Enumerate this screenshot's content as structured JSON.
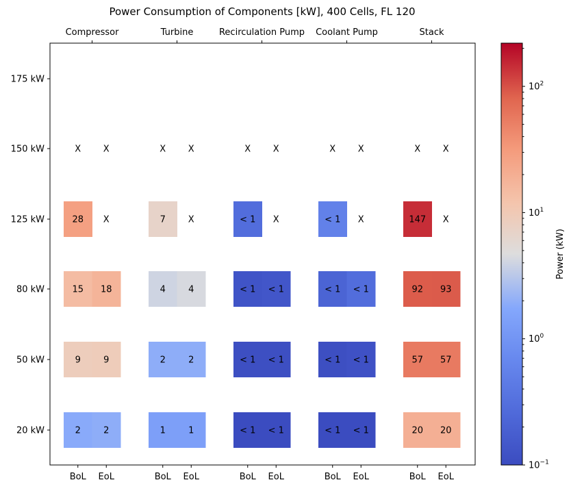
{
  "chart_data": {
    "type": "heatmap",
    "title": "Power Consumption of Components [kW], 400 Cells, FL 120",
    "components": [
      "Compressor",
      "Turbine",
      "Recirculation Pump",
      "Coolant Pump",
      "Stack"
    ],
    "conditions": [
      "BoL",
      "EoL"
    ],
    "rows": [
      "175 kW",
      "150 kW",
      "125 kW",
      "80 kW",
      "50 kW",
      "20 kW"
    ],
    "colorbar": {
      "label": "Power (kW)",
      "scale": "log",
      "min": 0.1,
      "max": 220,
      "colormap": "coolwarm",
      "ticks": [
        {
          "value": 0.1,
          "base": "10",
          "exp": "−1"
        },
        {
          "value": 1,
          "base": "10",
          "exp": "0"
        },
        {
          "value": 10,
          "base": "10",
          "exp": "1"
        },
        {
          "value": 100,
          "base": "10",
          "exp": "2"
        }
      ]
    },
    "cells": [
      {
        "row": "150 kW",
        "component": "Compressor",
        "condition": "BoL",
        "value": null,
        "label": "X"
      },
      {
        "row": "150 kW",
        "component": "Compressor",
        "condition": "EoL",
        "value": null,
        "label": "X"
      },
      {
        "row": "150 kW",
        "component": "Turbine",
        "condition": "BoL",
        "value": null,
        "label": "X"
      },
      {
        "row": "150 kW",
        "component": "Turbine",
        "condition": "EoL",
        "value": null,
        "label": "X"
      },
      {
        "row": "150 kW",
        "component": "Recirculation Pump",
        "condition": "BoL",
        "value": null,
        "label": "X"
      },
      {
        "row": "150 kW",
        "component": "Recirculation Pump",
        "condition": "EoL",
        "value": null,
        "label": "X"
      },
      {
        "row": "150 kW",
        "component": "Coolant Pump",
        "condition": "BoL",
        "value": null,
        "label": "X"
      },
      {
        "row": "150 kW",
        "component": "Coolant Pump",
        "condition": "EoL",
        "value": null,
        "label": "X"
      },
      {
        "row": "150 kW",
        "component": "Stack",
        "condition": "BoL",
        "value": null,
        "label": "X"
      },
      {
        "row": "150 kW",
        "component": "Stack",
        "condition": "EoL",
        "value": null,
        "label": "X"
      },
      {
        "row": "125 kW",
        "component": "Compressor",
        "condition": "BoL",
        "value": 28,
        "label": "28"
      },
      {
        "row": "125 kW",
        "component": "Compressor",
        "condition": "EoL",
        "value": null,
        "label": "X"
      },
      {
        "row": "125 kW",
        "component": "Turbine",
        "condition": "BoL",
        "value": 7,
        "label": "7"
      },
      {
        "row": "125 kW",
        "component": "Turbine",
        "condition": "EoL",
        "value": null,
        "label": "X"
      },
      {
        "row": "125 kW",
        "component": "Recirculation Pump",
        "condition": "BoL",
        "value": 0.3,
        "label": "< 1"
      },
      {
        "row": "125 kW",
        "component": "Recirculation Pump",
        "condition": "EoL",
        "value": null,
        "label": "X"
      },
      {
        "row": "125 kW",
        "component": "Coolant Pump",
        "condition": "BoL",
        "value": 0.55,
        "label": "< 1"
      },
      {
        "row": "125 kW",
        "component": "Coolant Pump",
        "condition": "EoL",
        "value": null,
        "label": "X"
      },
      {
        "row": "125 kW",
        "component": "Stack",
        "condition": "BoL",
        "value": 147,
        "label": "147"
      },
      {
        "row": "125 kW",
        "component": "Stack",
        "condition": "EoL",
        "value": null,
        "label": "X"
      },
      {
        "row": "80 kW",
        "component": "Compressor",
        "condition": "BoL",
        "value": 15,
        "label": "15"
      },
      {
        "row": "80 kW",
        "component": "Compressor",
        "condition": "EoL",
        "value": 18,
        "label": "18"
      },
      {
        "row": "80 kW",
        "component": "Turbine",
        "condition": "BoL",
        "value": 4,
        "label": "4"
      },
      {
        "row": "80 kW",
        "component": "Turbine",
        "condition": "EoL",
        "value": 4.4,
        "label": "4"
      },
      {
        "row": "80 kW",
        "component": "Recirculation Pump",
        "condition": "BoL",
        "value": 0.13,
        "label": "< 1"
      },
      {
        "row": "80 kW",
        "component": "Recirculation Pump",
        "condition": "EoL",
        "value": 0.14,
        "label": "< 1"
      },
      {
        "row": "80 kW",
        "component": "Coolant Pump",
        "condition": "BoL",
        "value": 0.22,
        "label": "< 1"
      },
      {
        "row": "80 kW",
        "component": "Coolant Pump",
        "condition": "EoL",
        "value": 0.3,
        "label": "< 1"
      },
      {
        "row": "80 kW",
        "component": "Stack",
        "condition": "BoL",
        "value": 92,
        "label": "92"
      },
      {
        "row": "80 kW",
        "component": "Stack",
        "condition": "EoL",
        "value": 93,
        "label": "93"
      },
      {
        "row": "50 kW",
        "component": "Compressor",
        "condition": "BoL",
        "value": 9,
        "label": "9"
      },
      {
        "row": "50 kW",
        "component": "Compressor",
        "condition": "EoL",
        "value": 9.4,
        "label": "9"
      },
      {
        "row": "50 kW",
        "component": "Turbine",
        "condition": "BoL",
        "value": 2,
        "label": "2"
      },
      {
        "row": "50 kW",
        "component": "Turbine",
        "condition": "EoL",
        "value": 2,
        "label": "2"
      },
      {
        "row": "50 kW",
        "component": "Recirculation Pump",
        "condition": "BoL",
        "value": 0.11,
        "label": "< 1"
      },
      {
        "row": "50 kW",
        "component": "Recirculation Pump",
        "condition": "EoL",
        "value": 0.11,
        "label": "< 1"
      },
      {
        "row": "50 kW",
        "component": "Coolant Pump",
        "condition": "BoL",
        "value": 0.11,
        "label": "< 1"
      },
      {
        "row": "50 kW",
        "component": "Coolant Pump",
        "condition": "EoL",
        "value": 0.12,
        "label": "< 1"
      },
      {
        "row": "50 kW",
        "component": "Stack",
        "condition": "BoL",
        "value": 57,
        "label": "57"
      },
      {
        "row": "50 kW",
        "component": "Stack",
        "condition": "EoL",
        "value": 57,
        "label": "57"
      },
      {
        "row": "20 kW",
        "component": "Compressor",
        "condition": "BoL",
        "value": 1.9,
        "label": "2"
      },
      {
        "row": "20 kW",
        "component": "Compressor",
        "condition": "EoL",
        "value": 2,
        "label": "2"
      },
      {
        "row": "20 kW",
        "component": "Turbine",
        "condition": "BoL",
        "value": 1.4,
        "label": "1"
      },
      {
        "row": "20 kW",
        "component": "Turbine",
        "condition": "EoL",
        "value": 1.4,
        "label": "1"
      },
      {
        "row": "20 kW",
        "component": "Recirculation Pump",
        "condition": "BoL",
        "value": 0.1,
        "label": "< 1"
      },
      {
        "row": "20 kW",
        "component": "Recirculation Pump",
        "condition": "EoL",
        "value": 0.1,
        "label": "< 1"
      },
      {
        "row": "20 kW",
        "component": "Coolant Pump",
        "condition": "BoL",
        "value": 0.1,
        "label": "< 1"
      },
      {
        "row": "20 kW",
        "component": "Coolant Pump",
        "condition": "EoL",
        "value": 0.1,
        "label": "< 1"
      },
      {
        "row": "20 kW",
        "component": "Stack",
        "condition": "BoL",
        "value": 20,
        "label": "20"
      },
      {
        "row": "20 kW",
        "component": "Stack",
        "condition": "EoL",
        "value": 20,
        "label": "20"
      }
    ]
  }
}
